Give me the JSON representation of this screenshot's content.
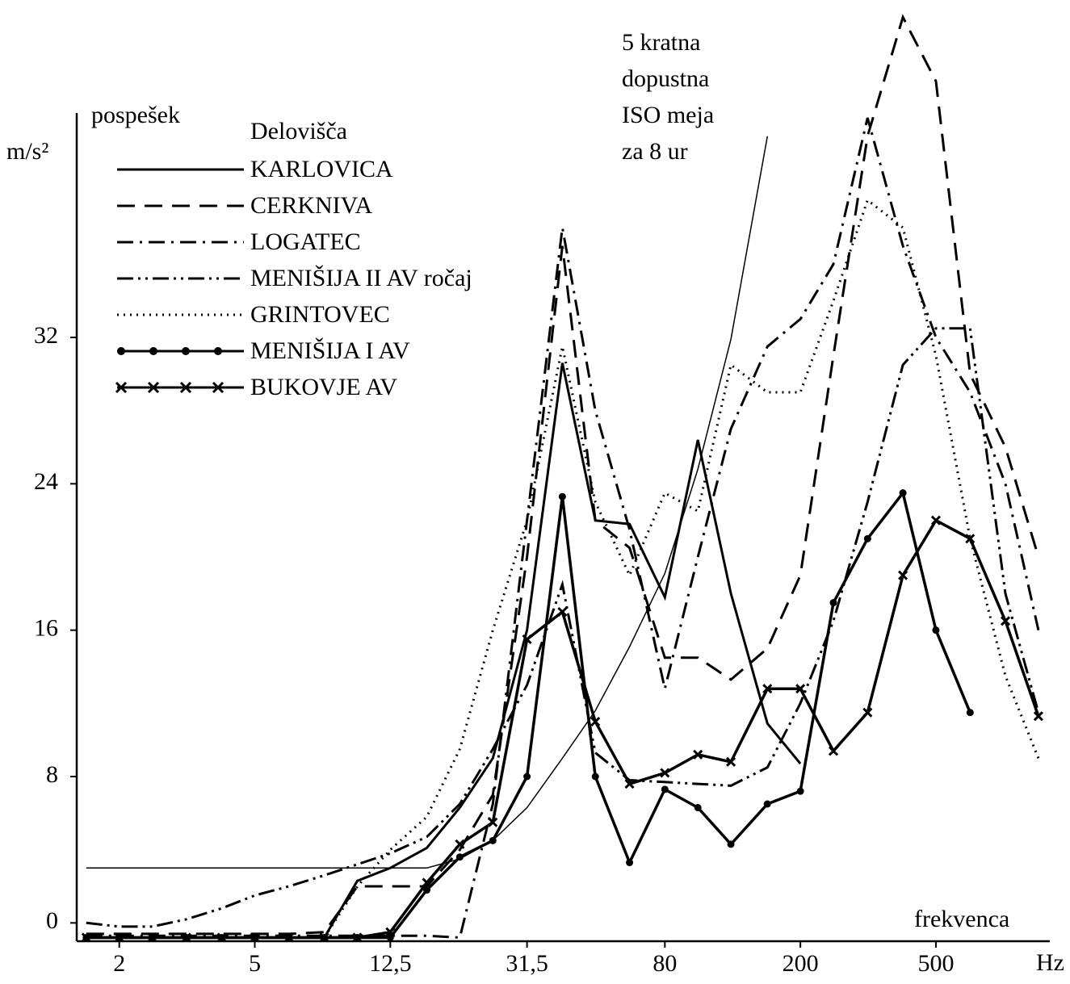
{
  "chart_data": {
    "type": "line",
    "y_label": "pospešek",
    "y_unit": "m/s²",
    "x_label": "frekvenca",
    "x_unit": "Hz",
    "legend_title": "Delovišča",
    "annotation": [
      "5 kratna",
      "dopustna",
      "ISO meja",
      "za 8 ur"
    ],
    "x": [
      1.6,
      2,
      2.5,
      3.15,
      4,
      5,
      6.3,
      8,
      10,
      12.5,
      16,
      20,
      25,
      31.5,
      40,
      50,
      63,
      80,
      100,
      125,
      160,
      200,
      250,
      315,
      400,
      500,
      630,
      800,
      1000
    ],
    "xlim": [
      1.5,
      1080
    ],
    "xscale": "log",
    "xticks": [
      2,
      5,
      {
        "value": 12.5,
        "label": "12,5"
      },
      {
        "value": 31.5,
        "label": "31,5"
      },
      80,
      200,
      500
    ],
    "ylim": [
      -1,
      50
    ],
    "yticks": [
      0,
      8,
      16,
      24,
      32
    ],
    "reference_line": {
      "color": "#000000",
      "values": [
        3,
        3,
        3,
        3,
        3,
        3,
        3,
        3,
        3,
        3,
        3,
        3.5,
        4.5,
        6.3,
        9,
        11.6,
        15.1,
        19.1,
        24.8,
        31.9,
        43,
        null,
        null,
        null,
        null,
        null,
        null,
        null,
        null
      ]
    },
    "series": [
      {
        "name": "KARLOVICA",
        "color": "#000000",
        "style": "solid",
        "marker": "none",
        "values": [
          -0.8,
          -0.8,
          -0.8,
          -0.8,
          -0.8,
          -0.8,
          -0.8,
          -0.8,
          2.3,
          3,
          4.1,
          6.3,
          9,
          16,
          30.6,
          22,
          21.8,
          17.8,
          26.4,
          18,
          10.9,
          8.7,
          null,
          null,
          null,
          null,
          null,
          null,
          null
        ]
      },
      {
        "name": "CERKNIVA",
        "color": "#000000",
        "style": "dashed",
        "marker": "none",
        "values": [
          -0.6,
          -0.6,
          -0.6,
          -0.6,
          -0.6,
          -0.6,
          -0.6,
          -0.5,
          2,
          2,
          2,
          4,
          7,
          20,
          37,
          22,
          20.5,
          14.5,
          14.5,
          13.3,
          15,
          19,
          31,
          43,
          49.5,
          46,
          30,
          26,
          20
        ]
      },
      {
        "name": "LOGATEC",
        "color": "#000000",
        "style": "dashdot",
        "marker": "none",
        "values": [
          -0.7,
          -0.7,
          -0.7,
          -0.7,
          -0.7,
          -0.7,
          -0.7,
          -0.7,
          -0.7,
          -0.7,
          -0.7,
          -0.8,
          6.5,
          22,
          38,
          28,
          21.5,
          12.8,
          20,
          27,
          31.5,
          33,
          36,
          44,
          37,
          32,
          29,
          24,
          16
        ]
      },
      {
        "name": "MENIŠIJA II AV ročaj",
        "color": "#000000",
        "style": "dashdotdot",
        "marker": "none",
        "values": [
          0,
          -0.2,
          -0.2,
          0.2,
          0.8,
          1.5,
          2,
          2.6,
          3.2,
          3.8,
          4.7,
          6.5,
          9.5,
          13,
          18.5,
          9.3,
          7.8,
          7.7,
          7.6,
          7.5,
          8.5,
          12,
          16.5,
          23,
          30.5,
          32.5,
          32.5,
          18,
          11.5
        ]
      },
      {
        "name": "GRINTOVEC",
        "color": "#000000",
        "style": "dotted",
        "marker": "none",
        "values": [
          -0.8,
          -0.8,
          -0.8,
          -0.8,
          -0.8,
          -0.8,
          -0.8,
          -0.8,
          2,
          4,
          5.8,
          9.5,
          16,
          22,
          31.5,
          23,
          19,
          23.5,
          22.5,
          30.5,
          29,
          29,
          34,
          39.5,
          38,
          31,
          21,
          13.5,
          9
        ]
      },
      {
        "name": "MENIŠIJA I AV",
        "color": "#000000",
        "style": "solid",
        "marker": "dot",
        "values": [
          -0.8,
          -0.8,
          -0.8,
          -0.8,
          -0.8,
          -0.8,
          -0.8,
          -0.8,
          -0.8,
          -0.8,
          1.8,
          3.6,
          4.5,
          8,
          23.3,
          8,
          3.3,
          7.3,
          6.3,
          4.3,
          6.5,
          7.2,
          17.5,
          21,
          23.5,
          16,
          11.5,
          null,
          null
        ]
      },
      {
        "name": "BUKOVJE AV",
        "color": "#000000",
        "style": "solid",
        "marker": "x",
        "values": [
          -0.8,
          -0.8,
          -0.8,
          -0.8,
          -0.8,
          -0.8,
          -0.8,
          -0.8,
          -0.8,
          -0.5,
          2.2,
          4.3,
          5.5,
          15.5,
          17,
          11,
          7.6,
          8.2,
          9.2,
          8.8,
          12.8,
          12.8,
          9.4,
          11.5,
          19,
          22,
          21,
          16.5,
          11.3
        ]
      }
    ]
  }
}
